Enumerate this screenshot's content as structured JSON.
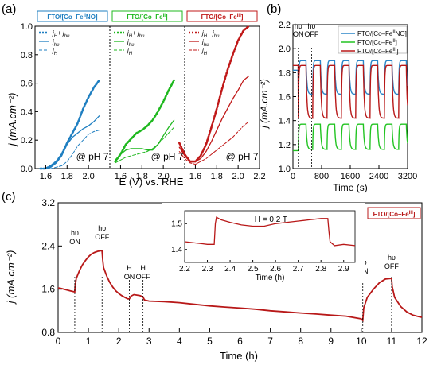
{
  "chart_data": [
    {
      "panel": "(a)",
      "type": "line",
      "xlabel": "E (V) vs. RHE",
      "ylabel": "j (mA.cm⁻²)",
      "xticks": [
        "1.6",
        "1.8",
        "2.0",
        "1.6",
        "1.8",
        "2.0",
        "1.6",
        "1.8",
        "2.0",
        "2.2"
      ],
      "yticks": [
        "0.0",
        "0.2",
        "0.4",
        "0.6",
        "0.8",
        "1.0"
      ],
      "ylim": [
        0,
        1.0
      ],
      "subplots": [
        {
          "label": "FTO/[Co–FeIINO]",
          "label_main": "FTO/[Co–Fe",
          "label_sup": "II",
          "label_tail": "NO]",
          "color": "#1f7fc1",
          "ph_label": "@ pH 7",
          "legend": [
            "jH+ jhυ",
            "jhυ",
            "jH"
          ],
          "legend_main": [
            "j",
            "j",
            "j"
          ],
          "legend_sub": [
            "H",
            "hυ",
            "H"
          ],
          "legend_extra": [
            "+ j",
            "",
            ""
          ],
          "legend_extra_sub": [
            "hυ",
            "",
            ""
          ],
          "series": [
            {
              "name": "jH+ jhυ",
              "style": "dotted",
              "x": [
                1.55,
                1.6,
                1.65,
                1.7,
                1.75,
                1.8,
                1.85,
                1.9,
                1.95,
                2.0,
                2.05,
                2.1
              ],
              "y": [
                0.0,
                0.0,
                0.02,
                0.05,
                0.1,
                0.18,
                0.25,
                0.32,
                0.42,
                0.5,
                0.57,
                0.62
              ]
            },
            {
              "name": "jhυ",
              "style": "solid",
              "x": [
                1.55,
                1.6,
                1.65,
                1.7,
                1.75,
                1.8,
                1.85,
                1.9,
                1.95,
                2.0,
                2.05,
                2.1
              ],
              "y": [
                0.0,
                0.0,
                0.01,
                0.04,
                0.09,
                0.17,
                0.22,
                0.25,
                0.28,
                0.3,
                0.33,
                0.37
              ]
            },
            {
              "name": "jH",
              "style": "dashed",
              "x": [
                1.55,
                1.6,
                1.65,
                1.7,
                1.75,
                1.8,
                1.85,
                1.9,
                1.95,
                2.0,
                2.05,
                2.1
              ],
              "y": [
                0.0,
                0.0,
                0.0,
                0.01,
                0.02,
                0.05,
                0.1,
                0.16,
                0.2,
                0.24,
                0.26,
                0.27
              ]
            }
          ]
        },
        {
          "label": "FTO/[Co–FeII]",
          "label_main": "FTO/[Co–Fe",
          "label_sup": "II",
          "label_tail": "]",
          "color": "#1fb81f",
          "ph_label": "@ pH 7",
          "legend": [
            "jH+ jhυ",
            "jhυ",
            "jH"
          ],
          "legend_main": [
            "j",
            "j",
            "j"
          ],
          "legend_sub": [
            "H",
            "hυ",
            "H"
          ],
          "legend_extra": [
            "+ j",
            "",
            ""
          ],
          "legend_extra_sub": [
            "hυ",
            "",
            ""
          ],
          "series": [
            {
              "name": "jH+ jhυ",
              "style": "dotted",
              "x": [
                1.55,
                1.6,
                1.65,
                1.7,
                1.75,
                1.8,
                1.85,
                1.9,
                1.95,
                2.0,
                2.05,
                2.1
              ],
              "y": [
                0.05,
                0.1,
                0.17,
                0.21,
                0.25,
                0.27,
                0.3,
                0.34,
                0.4,
                0.47,
                0.55,
                0.62
              ]
            },
            {
              "name": "jhυ",
              "style": "solid",
              "x": [
                1.55,
                1.6,
                1.65,
                1.7,
                1.75,
                1.8,
                1.85,
                1.9,
                1.95,
                2.0,
                2.05,
                2.1
              ],
              "y": [
                0.06,
                0.1,
                0.13,
                0.14,
                0.14,
                0.14,
                0.13,
                0.13,
                0.17,
                0.23,
                0.29,
                0.34
              ]
            },
            {
              "name": "jH",
              "style": "dashed",
              "x": [
                1.55,
                1.6,
                1.65,
                1.7,
                1.75,
                1.8,
                1.85,
                1.9,
                1.95,
                2.0,
                2.05,
                2.1
              ],
              "y": [
                0.04,
                0.06,
                0.08,
                0.09,
                0.1,
                0.11,
                0.12,
                0.14,
                0.17,
                0.21,
                0.25,
                0.29
              ]
            }
          ]
        },
        {
          "label": "FTO/[Co–FeIII]",
          "label_main": "FTO/[Co–Fe",
          "label_sup": "III",
          "label_tail": "]",
          "color": "#c01818",
          "ph_label": "@ pH 7",
          "legend": [
            "jH+ jhυ",
            "jhυ",
            "jH"
          ],
          "legend_main": [
            "j",
            "j",
            "j"
          ],
          "legend_sub": [
            "H",
            "hυ",
            "H"
          ],
          "legend_extra": [
            "+ j",
            "",
            ""
          ],
          "legend_extra_sub": [
            "hυ",
            "",
            ""
          ],
          "series": [
            {
              "name": "jH+ jhυ",
              "style": "dotted",
              "x": [
                1.45,
                1.5,
                1.55,
                1.6,
                1.65,
                1.7,
                1.75,
                1.8,
                1.85,
                1.9,
                1.95,
                2.0,
                2.05,
                2.1
              ],
              "y": [
                0.18,
                0.1,
                0.05,
                0.05,
                0.09,
                0.17,
                0.29,
                0.42,
                0.56,
                0.69,
                0.8,
                0.9,
                0.97,
                1.0
              ]
            },
            {
              "name": "jhυ",
              "style": "solid",
              "x": [
                1.45,
                1.5,
                1.55,
                1.6,
                1.65,
                1.7,
                1.75,
                1.8,
                1.85,
                1.9,
                1.95,
                2.0,
                2.05,
                2.1
              ],
              "y": [
                0.15,
                0.09,
                0.05,
                0.05,
                0.07,
                0.12,
                0.19,
                0.27,
                0.35,
                0.42,
                0.49,
                0.55,
                0.62,
                0.65
              ]
            },
            {
              "name": "jH",
              "style": "dashed",
              "x": [
                1.45,
                1.5,
                1.55,
                1.6,
                1.65,
                1.7,
                1.75,
                1.8,
                1.85,
                1.9,
                1.95,
                2.0,
                2.05,
                2.1
              ],
              "y": [
                0.12,
                0.07,
                0.04,
                0.03,
                0.05,
                0.07,
                0.1,
                0.13,
                0.16,
                0.19,
                0.22,
                0.26,
                0.3,
                0.33
              ]
            }
          ]
        }
      ]
    },
    {
      "panel": "(b)",
      "type": "line",
      "xlabel": "Time (s)",
      "ylabel": "j (mA.cm⁻²)",
      "xlim": [
        0,
        3200
      ],
      "ylim": [
        1.0,
        2.2
      ],
      "xticks": [
        0,
        800,
        1600,
        2400,
        3200
      ],
      "yticks": [
        1.0,
        1.2,
        1.4,
        1.6,
        1.8,
        2.0,
        2.2
      ],
      "annotations": [
        {
          "text": "hυ",
          "sub": "ON",
          "x": 150
        },
        {
          "text": "hυ",
          "sub": "OFF",
          "x": 520
        }
      ],
      "marker_lines_x": [
        150,
        520
      ],
      "cycle": {
        "start": 150,
        "period": 400,
        "on_duration": 215
      },
      "series": [
        {
          "name": "FTO/[Co–FeIINO]",
          "name_main": "FTO/[Co–Fe",
          "name_sup": "II",
          "name_tail": "NO]",
          "color": "#2b86c8",
          "dark_level": 1.62,
          "light_level": 1.9,
          "first_level": 1.82
        },
        {
          "name": "FTO/[Co–FeII]",
          "name_main": "FTO/[Co–Fe",
          "name_sup": "II",
          "name_tail": "]",
          "color": "#22c422",
          "dark_level": 1.16,
          "light_level": 1.37,
          "first_level": 1.15
        },
        {
          "name": "FTO/[Co–FeIII]",
          "name_main": "FTO/[Co–Fe",
          "name_sup": "III",
          "name_tail": "]",
          "color": "#b81818",
          "dark_level": 1.42,
          "light_level": 1.86,
          "first_level": 1.86
        }
      ]
    },
    {
      "panel": "(c)",
      "type": "line",
      "xlabel": "Time (h)",
      "ylabel": "j (mA.cm⁻²)",
      "xlim": [
        0,
        12
      ],
      "ylim": [
        0.8,
        3.2
      ],
      "xticks": [
        0,
        1,
        2,
        3,
        4,
        5,
        6,
        7,
        8,
        9,
        10,
        11,
        12
      ],
      "yticks": [
        0.8,
        1.6,
        2.4,
        3.2
      ],
      "legend": {
        "name": "FTO/[Co–FeIII]",
        "main": "FTO/[Co–Fe",
        "sup": "III",
        "tail": "]"
      },
      "color": "#b81818",
      "annotations": [
        {
          "text": "hυ",
          "sub": "ON",
          "x": 0.55
        },
        {
          "text": "hυ",
          "sub": "OFF",
          "x": 1.45
        },
        {
          "text": "H",
          "sub": "ON",
          "x": 2.35
        },
        {
          "text": "H",
          "sub": "OFF",
          "x": 2.8
        },
        {
          "text": "hυ",
          "sub": "ON",
          "x": 10.05
        },
        {
          "text": "hυ",
          "sub": "OFF",
          "x": 11.0
        }
      ],
      "marker_lines_x": [
        0.55,
        1.45,
        2.35,
        2.8,
        10.05,
        11.0
      ],
      "series_x": [
        0,
        0.05,
        0.2,
        0.4,
        0.55,
        0.56,
        0.6,
        0.7,
        0.8,
        0.9,
        1.0,
        1.1,
        1.2,
        1.3,
        1.4,
        1.45,
        1.47,
        1.5,
        1.6,
        1.7,
        1.8,
        1.9,
        2.0,
        2.1,
        2.2,
        2.3,
        2.35,
        2.4,
        2.5,
        2.6,
        2.7,
        2.8,
        2.85,
        3,
        3.5,
        4,
        4.5,
        5,
        5.5,
        6,
        6.5,
        7,
        7.5,
        8,
        8.5,
        9,
        9.5,
        10,
        10.05,
        10.08,
        10.2,
        10.4,
        10.6,
        10.8,
        11.0,
        11.02,
        11.1,
        11.3,
        11.5,
        11.7,
        11.9,
        12.0
      ],
      "series_y": [
        1.62,
        1.62,
        1.6,
        1.57,
        1.55,
        1.65,
        1.8,
        1.94,
        2.05,
        2.13,
        2.2,
        2.25,
        2.28,
        2.3,
        2.31,
        2.31,
        2.15,
        2.0,
        1.85,
        1.73,
        1.64,
        1.57,
        1.52,
        1.48,
        1.45,
        1.42,
        1.42,
        1.47,
        1.5,
        1.49,
        1.48,
        1.46,
        1.4,
        1.38,
        1.37,
        1.35,
        1.32,
        1.29,
        1.27,
        1.25,
        1.23,
        1.2,
        1.18,
        1.16,
        1.14,
        1.12,
        1.1,
        1.05,
        1.02,
        1.25,
        1.45,
        1.6,
        1.72,
        1.79,
        1.8,
        1.65,
        1.45,
        1.28,
        1.18,
        1.12,
        1.09,
        1.08
      ],
      "inset": {
        "label": "H = 0.2 T",
        "xlabel": "Time (h)",
        "xlim": [
          2.2,
          2.95
        ],
        "ylim": [
          1.35,
          1.55
        ],
        "xticks": [
          2.2,
          2.3,
          2.4,
          2.5,
          2.6,
          2.7,
          2.8,
          2.9
        ],
        "yticks": [
          1.4,
          1.5
        ],
        "series_x": [
          2.2,
          2.25,
          2.3,
          2.33,
          2.335,
          2.34,
          2.36,
          2.4,
          2.45,
          2.5,
          2.55,
          2.6,
          2.65,
          2.7,
          2.75,
          2.8,
          2.83,
          2.835,
          2.84,
          2.86,
          2.9,
          2.95
        ],
        "series_y": [
          1.43,
          1.425,
          1.42,
          1.42,
          1.5,
          1.525,
          1.515,
          1.505,
          1.495,
          1.49,
          1.49,
          1.5,
          1.505,
          1.51,
          1.515,
          1.52,
          1.52,
          1.47,
          1.43,
          1.415,
          1.42,
          1.415
        ]
      }
    }
  ]
}
